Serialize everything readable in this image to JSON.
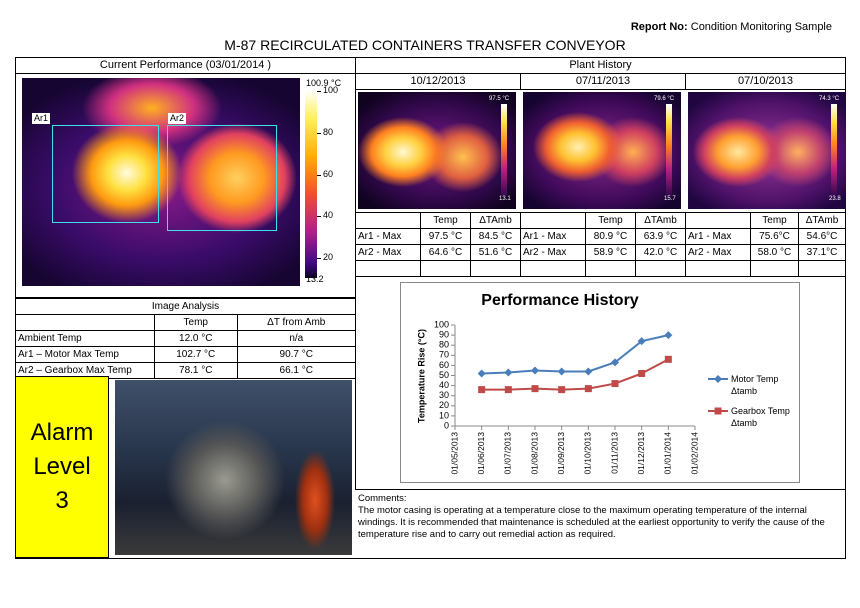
{
  "header": {
    "report_label": "Report No:",
    "report_value": "Condition Monitoring Sample",
    "title": "M-87 RECIRCULATED CONTAINERS TRANSFER CONVEYOR"
  },
  "current": {
    "heading": "Current Performance (03/01/2014 )",
    "max_label": "100.9 °C",
    "min_label": "13.2",
    "scale_ticks": [
      100,
      80,
      60,
      40,
      20
    ],
    "areas": [
      "Ar1",
      "Ar2"
    ]
  },
  "image_analysis": {
    "heading": "Image Analysis",
    "columns": [
      "Temp",
      "ΔT from Amb"
    ],
    "rows": [
      [
        "Ambient Temp",
        "12.0 °C",
        "n/a"
      ],
      [
        "Ar1 – Motor Max Temp",
        "102.7 °C",
        "90.7 °C"
      ],
      [
        "Ar2 – Gearbox Max Temp",
        "78.1 °C",
        "66.1 °C"
      ]
    ]
  },
  "alarm": {
    "lines": [
      "Alarm",
      "Level",
      "3"
    ]
  },
  "plant_history": {
    "heading": "Plant History",
    "columns": [
      "Temp",
      "ΔTAmb"
    ],
    "surveys": [
      {
        "date": "10/12/2013",
        "max_label": "97.5 °C",
        "min_label": "13.1",
        "rows": [
          [
            "Ar1 - Max",
            "97.5 °C",
            "84.5 °C"
          ],
          [
            "Ar2 - Max",
            "64.6 °C",
            "51.6 °C"
          ]
        ]
      },
      {
        "date": "07/11/2013",
        "max_label": "79.6 °C",
        "min_label": "15.7",
        "rows": [
          [
            "Ar1 - Max",
            "80.9 °C",
            "63.9 °C"
          ],
          [
            "Ar2 - Max",
            "58.9 °C",
            "42.0 °C"
          ]
        ]
      },
      {
        "date": "07/10/2013",
        "max_label": "74.3 °C",
        "min_label": "23.8",
        "rows": [
          [
            "Ar1 - Max",
            "75.6°C",
            "54.6°C"
          ],
          [
            "Ar2 - Max",
            "58.0 °C",
            "37.1°C"
          ]
        ]
      }
    ]
  },
  "chart_data": {
    "type": "line",
    "title": "Performance History",
    "y_label": "Temperature Rise (°C)",
    "categories": [
      "01/05/2013",
      "01/06/2013",
      "01/07/2013",
      "01/08/2013",
      "01/09/2013",
      "01/10/2013",
      "01/11/2013",
      "01/12/2013",
      "01/01/2014",
      "01/02/2014"
    ],
    "series": [
      {
        "name": "Motor Temp Δtamb",
        "color": "#4a7ebb",
        "marker": "diamond",
        "values": [
          null,
          52,
          53,
          55,
          54,
          54,
          63,
          84,
          90,
          null
        ]
      },
      {
        "name": "Gearbox Temp Δtamb",
        "color": "#be4b48",
        "marker": "square",
        "values": [
          null,
          36,
          36,
          37,
          36,
          37,
          42,
          52,
          66,
          null
        ]
      }
    ],
    "ylim": [
      0,
      100
    ],
    "yticks": [
      0,
      10,
      20,
      30,
      40,
      50,
      60,
      70,
      80,
      90,
      100
    ],
    "grid": false,
    "legend": "right"
  },
  "comments": {
    "label": "Comments:",
    "text": "The motor casing is operating at a temperature close to the maximum operating temperature of the internal windings. It is recommended that maintenance is scheduled at the earliest opportunity to verify the cause of the temperature rise and to carry out remedial action as required."
  }
}
